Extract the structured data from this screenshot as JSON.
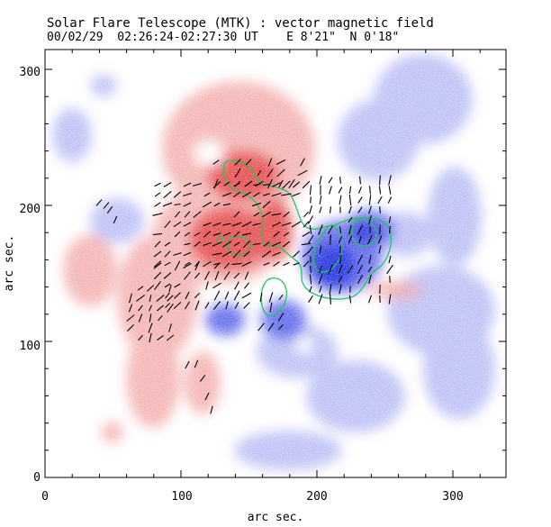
{
  "title": "Solar Flare Telescope (MTK) : vector magnetic field",
  "subtitle": "00/02/29  02:26:24-02:27:30 UT    E 8'21\"  N 0'18\"",
  "xlabel": "arc sec.",
  "ylabel": "arc sec.",
  "xticks": [
    "0",
    "100",
    "200",
    "300"
  ],
  "yticks": [
    "0",
    "100",
    "200",
    "300"
  ],
  "colors": {
    "positive_polarity": "#e03a3a",
    "negative_polarity": "#2d3be0",
    "contour": "#22c55e",
    "vectors": "#000000",
    "axes": "#000000"
  },
  "map": {
    "x_range_arcsec": [
      0,
      340
    ],
    "y_range_arcsec": [
      0,
      310
    ],
    "features": "red = positive line-of-sight field, blue = negative, black dashes = transverse field vectors, green = contours"
  }
}
